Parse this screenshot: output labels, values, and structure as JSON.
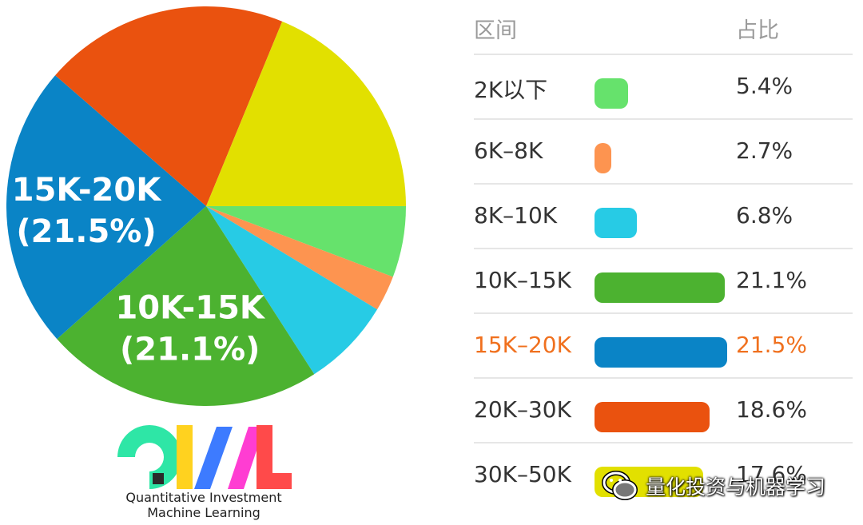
{
  "chart_data": {
    "type": "pie",
    "header": {
      "range": "区间",
      "share": "占比"
    },
    "slices": [
      {
        "label": "2K以下",
        "value": 5.4,
        "pct_text": "5.4%",
        "color": "#66e26c"
      },
      {
        "label": "6K-8K",
        "value": 2.7,
        "pct_text": "2.7%",
        "color": "#fd9450"
      },
      {
        "label": "8K-10K",
        "value": 6.8,
        "pct_text": "6.8%",
        "color": "#27cbe5"
      },
      {
        "label": "10K-15K",
        "value": 21.1,
        "pct_text": "21.1%",
        "color": "#4cb230"
      },
      {
        "label": "15K-20K",
        "value": 21.5,
        "pct_text": "21.5%",
        "color": "#0a84c6"
      },
      {
        "label": "20K-30K",
        "value": 18.6,
        "pct_text": "18.6%",
        "color": "#ea520f"
      },
      {
        "label": "30K-50K",
        "value": 17.6,
        "pct_text": "17.6%",
        "color": "#e2e000"
      }
    ],
    "highlighted": "15K-20K",
    "highlight_color": "#f0701e",
    "pie_labels": [
      {
        "name": "10K-15K",
        "text": "10K-15K",
        "pct": "(21.1%)"
      },
      {
        "name": "15K-20K",
        "text": "15K-20K",
        "pct": "(21.5%)"
      }
    ]
  },
  "logo": {
    "letters": "QIML",
    "line1": "Quantitative Investment",
    "line2": "Machine Learning"
  },
  "watermark": {
    "text": "量化投资与机器学习",
    "icon": "wechat-icon"
  }
}
